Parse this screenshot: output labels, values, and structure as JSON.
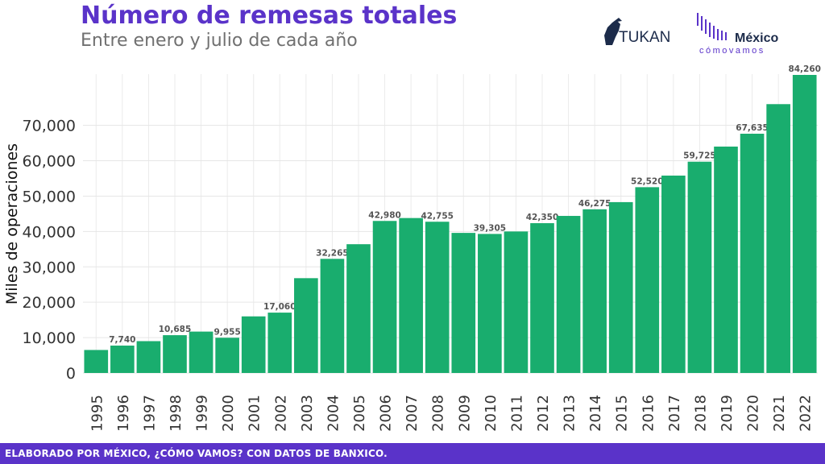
{
  "header": {
    "title": "Número de remesas totales",
    "subtitle": "Entre enero y julio de cada año"
  },
  "logos": {
    "tukan": "TUKAN",
    "mexico": "México",
    "como_vamos": "cómovamos"
  },
  "footer": {
    "text": "ELABORADO POR MÉXICO, ¿CÓMO VAMOS? CON DATOS DE BANXICO."
  },
  "colors": {
    "bar": "#19ad6e",
    "title": "#5a33c9",
    "footer_bg": "#5a33c9",
    "label": "#555555"
  },
  "chart_data": {
    "type": "bar",
    "title": "Número de remesas totales",
    "subtitle": "Entre enero y julio de cada año",
    "xlabel": "",
    "ylabel": "Miles de operaciones",
    "ylim": [
      0,
      84260
    ],
    "yticks": [
      0,
      10000,
      20000,
      30000,
      40000,
      50000,
      60000,
      70000
    ],
    "ytick_labels": [
      "0",
      "10,000",
      "20,000",
      "30,000",
      "40,000",
      "50,000",
      "60,000",
      "70,000"
    ],
    "grid": true,
    "categories": [
      "1995",
      "1996",
      "1997",
      "1998",
      "1999",
      "2000",
      "2001",
      "2002",
      "2003",
      "2004",
      "2005",
      "2006",
      "2007",
      "2008",
      "2009",
      "2010",
      "2011",
      "2012",
      "2013",
      "2014",
      "2015",
      "2016",
      "2017",
      "2018",
      "2019",
      "2020",
      "2021",
      "2022"
    ],
    "values": [
      6500,
      7740,
      9000,
      10685,
      11700,
      9955,
      16000,
      17060,
      26800,
      32265,
      36400,
      42980,
      43800,
      42755,
      39600,
      39305,
      40000,
      42350,
      44400,
      46275,
      48300,
      52520,
      55800,
      59725,
      64000,
      67635,
      76000,
      84260
    ],
    "data_labels": [
      "",
      "7,740",
      "",
      "10,685",
      "",
      "9,955",
      "",
      "17,060",
      "",
      "32,265",
      "",
      "42,980",
      "",
      "42,755",
      "",
      "39,305",
      "",
      "42,350",
      "",
      "46,275",
      "",
      "52,520",
      "",
      "59,725",
      "",
      "67,635",
      "",
      "84,260"
    ]
  }
}
